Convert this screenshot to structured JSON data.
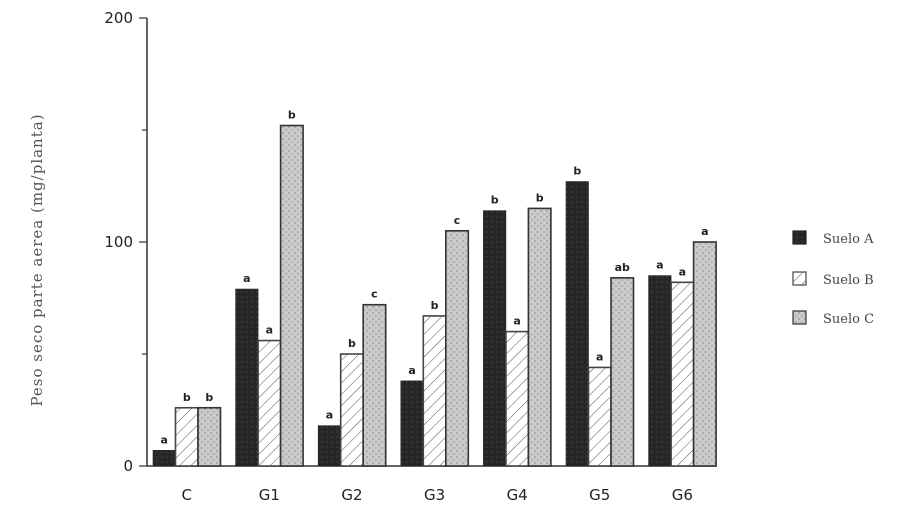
{
  "chart_data": {
    "type": "bar",
    "title": "",
    "xlabel": "",
    "ylabel": "Peso seco parte aerea (mg/planta)",
    "ylim": [
      0,
      200
    ],
    "yticks": [
      "0",
      "100",
      "200"
    ],
    "categories": [
      "C",
      "G1",
      "G2",
      "G3",
      "G4",
      "G5",
      "G6"
    ],
    "series": [
      {
        "name": "Suelo A",
        "values": [
          7,
          79,
          18,
          38,
          114,
          127,
          85
        ],
        "letters": [
          "a",
          "a",
          "a",
          "a",
          "b",
          "b",
          "a"
        ]
      },
      {
        "name": "Suelo B",
        "values": [
          26,
          56,
          50,
          67,
          60,
          44,
          82
        ],
        "letters": [
          "b",
          "a",
          "b",
          "b",
          "a",
          "a",
          "a"
        ]
      },
      {
        "name": "Suelo C",
        "values": [
          26,
          152,
          72,
          105,
          115,
          84,
          100
        ],
        "letters": [
          "b",
          "b",
          "c",
          "c",
          "b",
          "ab",
          "a"
        ]
      }
    ],
    "legend_position": "right",
    "grid": false
  }
}
